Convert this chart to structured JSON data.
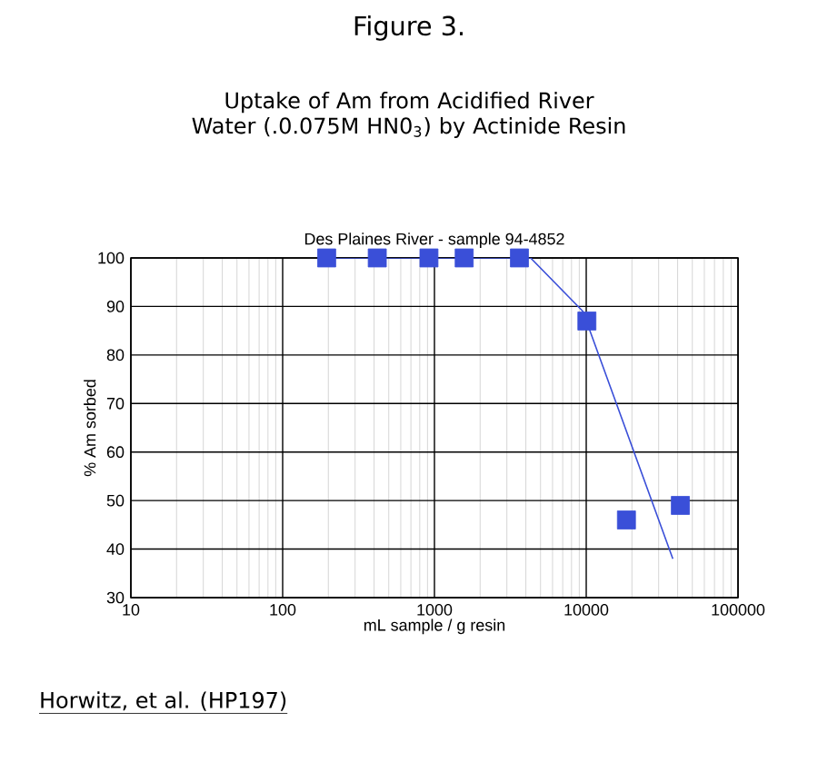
{
  "chart_data": {
    "type": "scatter",
    "title": "Figure 3.",
    "subtitle": "Uptake of Am from Acidified River Water (.0.075M HN0$_{3}$) by Actinide Resin",
    "annotations": [
      "Des Plaines River - sample 94-4852",
      "Horwitz, et al. (HP197)"
    ],
    "xlabel": "mL sample / g resin",
    "ylabel": "% Am sorbed",
    "log": "x",
    "grid": true,
    "marker": "square",
    "xlim": [
      10,
      100000
    ],
    "xticks": [
      10,
      100,
      1000,
      10000,
      100000
    ],
    "ylim": [
      30,
      100
    ],
    "yticks": [
      30,
      40,
      50,
      60,
      70,
      80,
      90,
      100
    ],
    "series": [
      {
        "color": "#3a4fd8",
        "x": [
          195,
          420,
          920,
          1570,
          3630,
          10100,
          18400,
          41700
        ],
        "values": [
          100,
          100,
          100,
          100,
          100,
          87,
          46,
          49
        ]
      },
      {
        "type": "line",
        "color": "#3a4fd8",
        "marker": "none",
        "line_style": "solid",
        "x": [
          195,
          4300,
          9500,
          37200
        ],
        "values": [
          100,
          100,
          89,
          38
        ]
      }
    ]
  }
}
